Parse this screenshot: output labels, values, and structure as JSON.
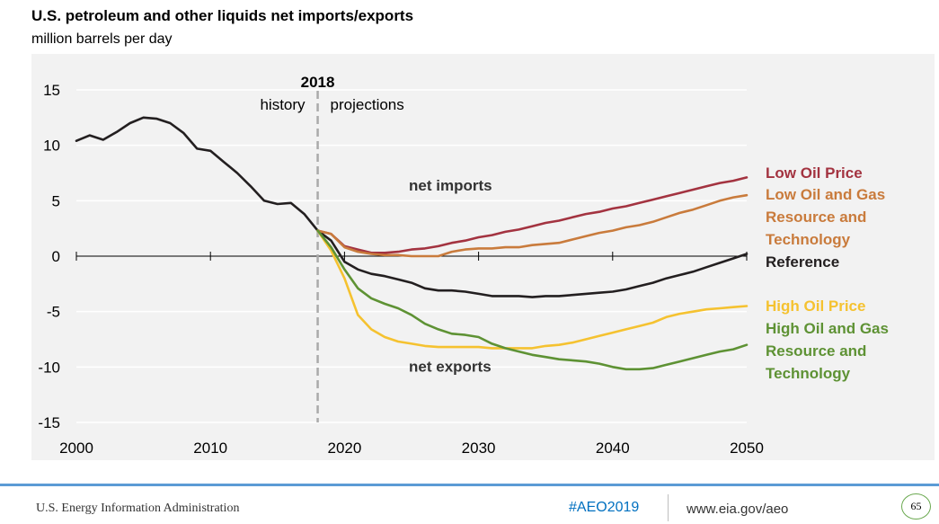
{
  "title": "U.S. petroleum and other liquids net imports/exports",
  "subtitle": "million barrels per day",
  "footer": {
    "agency": "U.S. Energy Information Administration",
    "hashtag": "#AEO2019",
    "url": "www.eia.gov/aeo",
    "page_number": "65"
  },
  "colors": {
    "reference": "#231f20",
    "low_oil_price": "#a33340",
    "low_oil_gas_resource": "#c97b3c",
    "high_oil_price": "#f5c230",
    "high_oil_gas_resource": "#5e9234",
    "divider": "#aaaaaa",
    "panel": "#f2f2f2",
    "footer_accent": "#5b9bd5"
  },
  "chart_data": {
    "type": "line",
    "title": "U.S. petroleum and other liquids net imports/exports",
    "ylabel": "million barrels per day",
    "xlim": [
      2000,
      2050
    ],
    "ylim": [
      -15,
      15
    ],
    "x_ticks": [
      "2000",
      "2010",
      "2020",
      "2030",
      "2040",
      "2050"
    ],
    "y_ticks": [
      "15",
      "10",
      "5",
      "0",
      "-5",
      "-10",
      "-15"
    ],
    "grid": "horizontal",
    "divider": {
      "x": 2018,
      "label": "2018",
      "left_label": "history",
      "right_label": "projections"
    },
    "annotations": [
      {
        "text": "net imports",
        "x": 2024.8,
        "y": 5.9
      },
      {
        "text": "net exports",
        "x": 2024.8,
        "y": -10.4
      }
    ],
    "legend_placement": "right",
    "series": [
      {
        "name": "Reference",
        "key": "reference",
        "x": [
          2000,
          2001,
          2002,
          2003,
          2004,
          2005,
          2006,
          2007,
          2008,
          2009,
          2010,
          2011,
          2012,
          2013,
          2014,
          2015,
          2016,
          2017,
          2018,
          2019,
          2020,
          2021,
          2022,
          2023,
          2024,
          2025,
          2026,
          2027,
          2028,
          2029,
          2030,
          2031,
          2032,
          2033,
          2034,
          2035,
          2036,
          2037,
          2038,
          2039,
          2040,
          2041,
          2042,
          2043,
          2044,
          2045,
          2046,
          2047,
          2048,
          2049,
          2050
        ],
        "values": [
          10.4,
          10.9,
          10.5,
          11.2,
          12.0,
          12.5,
          12.4,
          12.0,
          11.1,
          9.7,
          9.5,
          8.5,
          7.5,
          6.3,
          5.0,
          4.7,
          4.8,
          3.8,
          2.3,
          1.4,
          -0.5,
          -1.2,
          -1.6,
          -1.8,
          -2.1,
          -2.4,
          -2.9,
          -3.1,
          -3.1,
          -3.2,
          -3.4,
          -3.6,
          -3.6,
          -3.6,
          -3.7,
          -3.6,
          -3.6,
          -3.5,
          -3.4,
          -3.3,
          -3.2,
          -3.0,
          -2.7,
          -2.4,
          -2.0,
          -1.7,
          -1.4,
          -1.0,
          -0.6,
          -0.2,
          0.2
        ]
      },
      {
        "name": "Low Oil Price",
        "key": "low_oil_price",
        "x": [
          2018,
          2019,
          2020,
          2021,
          2022,
          2023,
          2024,
          2025,
          2026,
          2027,
          2028,
          2029,
          2030,
          2031,
          2032,
          2033,
          2034,
          2035,
          2036,
          2037,
          2038,
          2039,
          2040,
          2041,
          2042,
          2043,
          2044,
          2045,
          2046,
          2047,
          2048,
          2049,
          2050
        ],
        "values": [
          2.3,
          2.0,
          0.9,
          0.6,
          0.3,
          0.3,
          0.4,
          0.6,
          0.7,
          0.9,
          1.2,
          1.4,
          1.7,
          1.9,
          2.2,
          2.4,
          2.7,
          3.0,
          3.2,
          3.5,
          3.8,
          4.0,
          4.3,
          4.5,
          4.8,
          5.1,
          5.4,
          5.7,
          6.0,
          6.3,
          6.6,
          6.8,
          7.1
        ]
      },
      {
        "name": "Low Oil and Gas Resource and Technology",
        "key": "low_oil_gas_resource",
        "x": [
          2018,
          2019,
          2020,
          2021,
          2022,
          2023,
          2024,
          2025,
          2026,
          2027,
          2028,
          2029,
          2030,
          2031,
          2032,
          2033,
          2034,
          2035,
          2036,
          2037,
          2038,
          2039,
          2040,
          2041,
          2042,
          2043,
          2044,
          2045,
          2046,
          2047,
          2048,
          2049,
          2050
        ],
        "values": [
          2.3,
          2.0,
          0.8,
          0.4,
          0.2,
          0.1,
          0.1,
          0.0,
          0.0,
          0.0,
          0.4,
          0.6,
          0.7,
          0.7,
          0.8,
          0.8,
          1.0,
          1.1,
          1.2,
          1.5,
          1.8,
          2.1,
          2.3,
          2.6,
          2.8,
          3.1,
          3.5,
          3.9,
          4.2,
          4.6,
          5.0,
          5.3,
          5.5
        ]
      },
      {
        "name": "High Oil Price",
        "key": "high_oil_price",
        "x": [
          2018,
          2019,
          2020,
          2021,
          2022,
          2023,
          2024,
          2025,
          2026,
          2027,
          2028,
          2029,
          2030,
          2031,
          2032,
          2033,
          2034,
          2035,
          2036,
          2037,
          2038,
          2039,
          2040,
          2041,
          2042,
          2043,
          2044,
          2045,
          2046,
          2047,
          2048,
          2049,
          2050
        ],
        "values": [
          2.3,
          0.5,
          -2.0,
          -5.3,
          -6.6,
          -7.3,
          -7.7,
          -7.9,
          -8.1,
          -8.2,
          -8.2,
          -8.2,
          -8.2,
          -8.3,
          -8.3,
          -8.3,
          -8.3,
          -8.1,
          -8.0,
          -7.8,
          -7.5,
          -7.2,
          -6.9,
          -6.6,
          -6.3,
          -6.0,
          -5.5,
          -5.2,
          -5.0,
          -4.8,
          -4.7,
          -4.6,
          -4.5
        ]
      },
      {
        "name": "High Oil and Gas Resource and Technology",
        "key": "high_oil_gas_resource",
        "x": [
          2018,
          2019,
          2020,
          2021,
          2022,
          2023,
          2024,
          2025,
          2026,
          2027,
          2028,
          2029,
          2030,
          2031,
          2032,
          2033,
          2034,
          2035,
          2036,
          2037,
          2038,
          2039,
          2040,
          2041,
          2042,
          2043,
          2044,
          2045,
          2046,
          2047,
          2048,
          2049,
          2050
        ],
        "values": [
          2.3,
          0.8,
          -1.2,
          -2.9,
          -3.8,
          -4.3,
          -4.7,
          -5.3,
          -6.1,
          -6.6,
          -7.0,
          -7.1,
          -7.3,
          -7.9,
          -8.3,
          -8.6,
          -8.9,
          -9.1,
          -9.3,
          -9.4,
          -9.5,
          -9.7,
          -10.0,
          -10.2,
          -10.2,
          -10.1,
          -9.8,
          -9.5,
          -9.2,
          -8.9,
          -8.6,
          -8.4,
          -8.0
        ]
      }
    ],
    "legend": [
      {
        "key": "low_oil_price",
        "lines": [
          "Low Oil Price"
        ]
      },
      {
        "key": "low_oil_gas_resource",
        "lines": [
          "Low Oil and Gas",
          "Resource and",
          "Technology"
        ]
      },
      {
        "key": "reference",
        "lines": [
          "Reference"
        ]
      },
      {
        "key": "high_oil_price",
        "lines": [
          "High Oil Price"
        ]
      },
      {
        "key": "high_oil_gas_resource",
        "lines": [
          "High Oil and Gas",
          "Resource and",
          "Technology"
        ]
      }
    ]
  }
}
